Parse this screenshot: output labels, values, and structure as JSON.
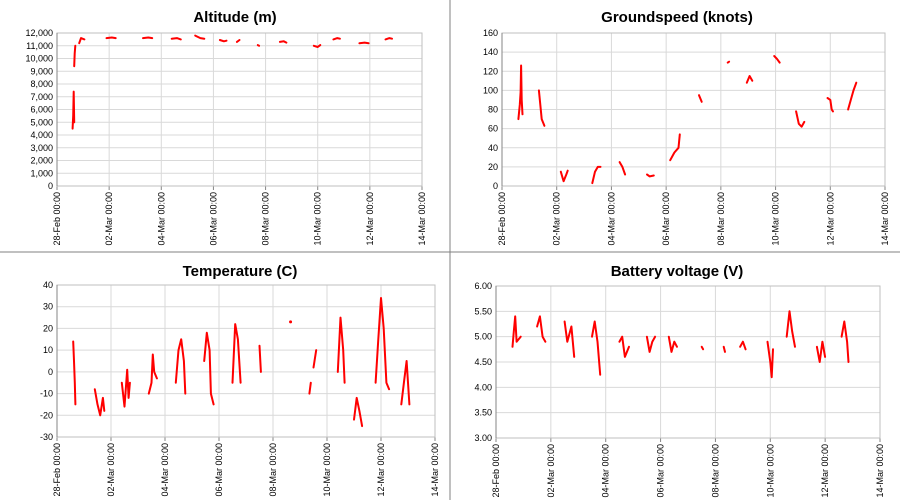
{
  "chart_data": [
    {
      "type": "scatter",
      "title": "Altitude (m)",
      "ylim": [
        0,
        12000
      ],
      "yticks": [
        "0",
        "1,000",
        "2,000",
        "3,000",
        "4,000",
        "5,000",
        "6,000",
        "7,000",
        "8,000",
        "9,000",
        "10,000",
        "11,000",
        "12,000"
      ],
      "xticks": [
        "28-Feb 00:00",
        "02-Mar 00:00",
        "04-Mar 00:00",
        "06-Mar 00:00",
        "08-Mar 00:00",
        "10-Mar 00:00",
        "12-Mar 00:00",
        "14-Mar 00:00"
      ],
      "xlim_days": [
        0,
        14
      ],
      "grid": true,
      "series_color": "#ff0000",
      "segments": [
        [
          [
            0.6,
            4500
          ],
          [
            0.62,
            5500
          ],
          [
            0.64,
            7400
          ],
          [
            0.66,
            5000
          ]
        ],
        [
          [
            0.66,
            9400
          ],
          [
            0.68,
            10400
          ],
          [
            0.7,
            11000
          ]
        ],
        [
          [
            0.85,
            11200
          ],
          [
            0.92,
            11600
          ],
          [
            1.05,
            11500
          ]
        ],
        [
          [
            1.9,
            11600
          ],
          [
            2.1,
            11650
          ],
          [
            2.25,
            11600
          ]
        ],
        [
          [
            3.3,
            11600
          ],
          [
            3.5,
            11650
          ],
          [
            3.65,
            11600
          ]
        ],
        [
          [
            4.4,
            11550
          ],
          [
            4.6,
            11600
          ],
          [
            4.75,
            11500
          ]
        ],
        [
          [
            5.3,
            11800
          ],
          [
            5.5,
            11600
          ],
          [
            5.65,
            11550
          ]
        ],
        [
          [
            6.25,
            11450
          ],
          [
            6.4,
            11350
          ],
          [
            6.5,
            11400
          ]
        ],
        [
          [
            6.9,
            11300
          ],
          [
            7.0,
            11450
          ]
        ],
        [
          [
            7.7,
            11050
          ],
          [
            7.75,
            11000
          ]
        ],
        [
          [
            8.55,
            11300
          ],
          [
            8.7,
            11350
          ],
          [
            8.8,
            11250
          ]
        ],
        [
          [
            9.85,
            11000
          ],
          [
            10.0,
            10900
          ],
          [
            10.1,
            11050
          ]
        ],
        [
          [
            10.6,
            11500
          ],
          [
            10.75,
            11600
          ],
          [
            10.85,
            11550
          ]
        ],
        [
          [
            11.6,
            11200
          ],
          [
            11.8,
            11250
          ],
          [
            11.95,
            11200
          ]
        ],
        [
          [
            12.6,
            11500
          ],
          [
            12.75,
            11600
          ],
          [
            12.85,
            11550
          ]
        ]
      ]
    },
    {
      "type": "scatter",
      "title": "Groundspeed (knots)",
      "ylim": [
        0,
        160
      ],
      "yticks": [
        "0",
        "20",
        "40",
        "60",
        "80",
        "100",
        "120",
        "140",
        "160"
      ],
      "xticks": [
        "28-Feb 00:00",
        "02-Mar 00:00",
        "04-Mar 00:00",
        "06-Mar 00:00",
        "08-Mar 00:00",
        "10-Mar 00:00",
        "12-Mar 00:00",
        "14-Mar 00:00"
      ],
      "xlim_days": [
        0,
        14
      ],
      "grid": true,
      "series_color": "#ff0000",
      "segments": [
        [
          [
            0.6,
            70
          ],
          [
            0.65,
            85
          ],
          [
            0.68,
            98
          ],
          [
            0.7,
            126
          ],
          [
            0.72,
            90
          ],
          [
            0.75,
            75
          ]
        ],
        [
          [
            1.35,
            100
          ],
          [
            1.4,
            85
          ],
          [
            1.45,
            70
          ],
          [
            1.55,
            63
          ]
        ],
        [
          [
            2.15,
            15
          ],
          [
            2.25,
            5
          ],
          [
            2.35,
            12
          ],
          [
            2.4,
            16
          ]
        ],
        [
          [
            3.3,
            3
          ],
          [
            3.4,
            15
          ],
          [
            3.5,
            20
          ],
          [
            3.6,
            20
          ]
        ],
        [
          [
            4.3,
            25
          ],
          [
            4.4,
            20
          ],
          [
            4.5,
            12
          ]
        ],
        [
          [
            5.3,
            12
          ],
          [
            5.4,
            10
          ],
          [
            5.55,
            11
          ]
        ],
        [
          [
            6.15,
            27
          ],
          [
            6.3,
            35
          ],
          [
            6.45,
            40
          ],
          [
            6.5,
            54
          ]
        ],
        [
          [
            7.2,
            95
          ],
          [
            7.3,
            88
          ]
        ],
        [
          [
            8.25,
            129
          ],
          [
            8.3,
            130
          ]
        ],
        [
          [
            8.95,
            108
          ],
          [
            9.05,
            115
          ],
          [
            9.15,
            110
          ]
        ],
        [
          [
            9.95,
            136
          ],
          [
            10.05,
            133
          ],
          [
            10.15,
            129
          ]
        ],
        [
          [
            10.75,
            78
          ],
          [
            10.85,
            65
          ],
          [
            10.95,
            62
          ],
          [
            11.05,
            67
          ]
        ],
        [
          [
            11.9,
            92
          ],
          [
            12.0,
            90
          ],
          [
            12.05,
            80
          ],
          [
            12.1,
            78
          ]
        ],
        [
          [
            12.65,
            80
          ],
          [
            12.75,
            90
          ],
          [
            12.85,
            100
          ],
          [
            12.95,
            108
          ]
        ]
      ]
    },
    {
      "type": "scatter",
      "title": "Temperature (C)",
      "ylim": [
        -30,
        40
      ],
      "yticks": [
        "-30",
        "-20",
        "-10",
        "0",
        "10",
        "20",
        "30",
        "40"
      ],
      "xticks": [
        "28-Feb 00:00",
        "02-Mar 00:00",
        "04-Mar 00:00",
        "06-Mar 00:00",
        "08-Mar 00:00",
        "10-Mar 00:00",
        "12-Mar 00:00",
        "14-Mar 00:00"
      ],
      "xlim_days": [
        0,
        14
      ],
      "grid": true,
      "series_color": "#ff0000",
      "segments": [
        [
          [
            0.6,
            14
          ],
          [
            0.63,
            5
          ],
          [
            0.66,
            -5
          ],
          [
            0.68,
            -15
          ]
        ],
        [
          [
            1.4,
            -8
          ],
          [
            1.5,
            -15
          ],
          [
            1.6,
            -20
          ],
          [
            1.7,
            -12
          ],
          [
            1.75,
            -18
          ]
        ],
        [
          [
            2.4,
            -5
          ],
          [
            2.5,
            -16
          ],
          [
            2.6,
            1
          ],
          [
            2.65,
            -12
          ],
          [
            2.7,
            -5
          ]
        ],
        [
          [
            3.4,
            -10
          ],
          [
            3.5,
            -5
          ],
          [
            3.55,
            8
          ],
          [
            3.6,
            0
          ],
          [
            3.7,
            -3
          ]
        ],
        [
          [
            4.4,
            -5
          ],
          [
            4.5,
            10
          ],
          [
            4.6,
            15
          ],
          [
            4.7,
            5
          ],
          [
            4.75,
            -10
          ]
        ],
        [
          [
            5.45,
            5
          ],
          [
            5.55,
            18
          ],
          [
            5.65,
            10
          ],
          [
            5.7,
            -10
          ],
          [
            5.8,
            -15
          ]
        ],
        [
          [
            6.5,
            -5
          ],
          [
            6.6,
            22
          ],
          [
            6.7,
            15
          ],
          [
            6.8,
            -5
          ]
        ],
        [
          [
            7.5,
            12
          ],
          [
            7.55,
            0
          ]
        ],
        [
          [
            8.65,
            23
          ]
        ],
        [
          [
            9.35,
            -10
          ],
          [
            9.4,
            -5
          ]
        ],
        [
          [
            9.5,
            2
          ],
          [
            9.6,
            10
          ]
        ],
        [
          [
            10.4,
            0
          ],
          [
            10.5,
            25
          ],
          [
            10.6,
            10
          ],
          [
            10.65,
            -5
          ]
        ],
        [
          [
            11.0,
            -22
          ],
          [
            11.1,
            -12
          ],
          [
            11.2,
            -18
          ],
          [
            11.3,
            -25
          ]
        ],
        [
          [
            11.8,
            -5
          ],
          [
            11.9,
            15
          ],
          [
            12.0,
            34
          ],
          [
            12.1,
            20
          ],
          [
            12.2,
            -5
          ],
          [
            12.3,
            -8
          ]
        ],
        [
          [
            12.75,
            -15
          ],
          [
            12.85,
            -5
          ],
          [
            12.95,
            5
          ],
          [
            13.05,
            -15
          ]
        ]
      ]
    },
    {
      "type": "scatter",
      "title": "Battery voltage (V)",
      "ylim": [
        3.0,
        6.0
      ],
      "yticks": [
        "3.00",
        "3.50",
        "4.00",
        "4.50",
        "5.00",
        "5.50",
        "6.00"
      ],
      "xticks": [
        "28-Feb 00:00",
        "02-Mar 00:00",
        "04-Mar 00:00",
        "06-Mar 00:00",
        "08-Mar 00:00",
        "10-Mar 00:00",
        "12-Mar 00:00",
        "14-Mar 00:00"
      ],
      "xlim_days": [
        0,
        14
      ],
      "grid": true,
      "series_color": "#ff0000",
      "segments": [
        [
          [
            0.6,
            4.8
          ],
          [
            0.65,
            5.1
          ],
          [
            0.7,
            5.4
          ],
          [
            0.75,
            4.9
          ],
          [
            0.9,
            5.0
          ]
        ],
        [
          [
            1.5,
            5.2
          ],
          [
            1.6,
            5.4
          ],
          [
            1.7,
            5.0
          ],
          [
            1.8,
            4.9
          ]
        ],
        [
          [
            2.5,
            5.3
          ],
          [
            2.6,
            4.9
          ],
          [
            2.75,
            5.2
          ],
          [
            2.85,
            4.6
          ]
        ],
        [
          [
            3.5,
            5.0
          ],
          [
            3.6,
            5.3
          ],
          [
            3.7,
            4.9
          ],
          [
            3.8,
            4.25
          ]
        ],
        [
          [
            4.5,
            4.9
          ],
          [
            4.6,
            5.0
          ],
          [
            4.7,
            4.6
          ],
          [
            4.85,
            4.8
          ]
        ],
        [
          [
            5.5,
            5.0
          ],
          [
            5.6,
            4.7
          ],
          [
            5.7,
            4.9
          ],
          [
            5.8,
            5.0
          ]
        ],
        [
          [
            6.3,
            5.0
          ],
          [
            6.4,
            4.7
          ],
          [
            6.5,
            4.9
          ],
          [
            6.6,
            4.8
          ]
        ],
        [
          [
            7.5,
            4.8
          ],
          [
            7.55,
            4.75
          ]
        ],
        [
          [
            8.3,
            4.8
          ],
          [
            8.35,
            4.7
          ]
        ],
        [
          [
            8.9,
            4.8
          ],
          [
            9.0,
            4.9
          ],
          [
            9.1,
            4.75
          ]
        ],
        [
          [
            9.9,
            4.9
          ],
          [
            10.0,
            4.5
          ],
          [
            10.05,
            4.2
          ],
          [
            10.1,
            4.75
          ]
        ],
        [
          [
            10.6,
            5.0
          ],
          [
            10.7,
            5.5
          ],
          [
            10.8,
            5.1
          ],
          [
            10.9,
            4.8
          ]
        ],
        [
          [
            11.7,
            4.8
          ],
          [
            11.8,
            4.5
          ],
          [
            11.9,
            4.9
          ],
          [
            12.0,
            4.6
          ]
        ],
        [
          [
            12.6,
            5.0
          ],
          [
            12.7,
            5.3
          ],
          [
            12.8,
            4.9
          ],
          [
            12.85,
            4.5
          ]
        ]
      ]
    }
  ]
}
